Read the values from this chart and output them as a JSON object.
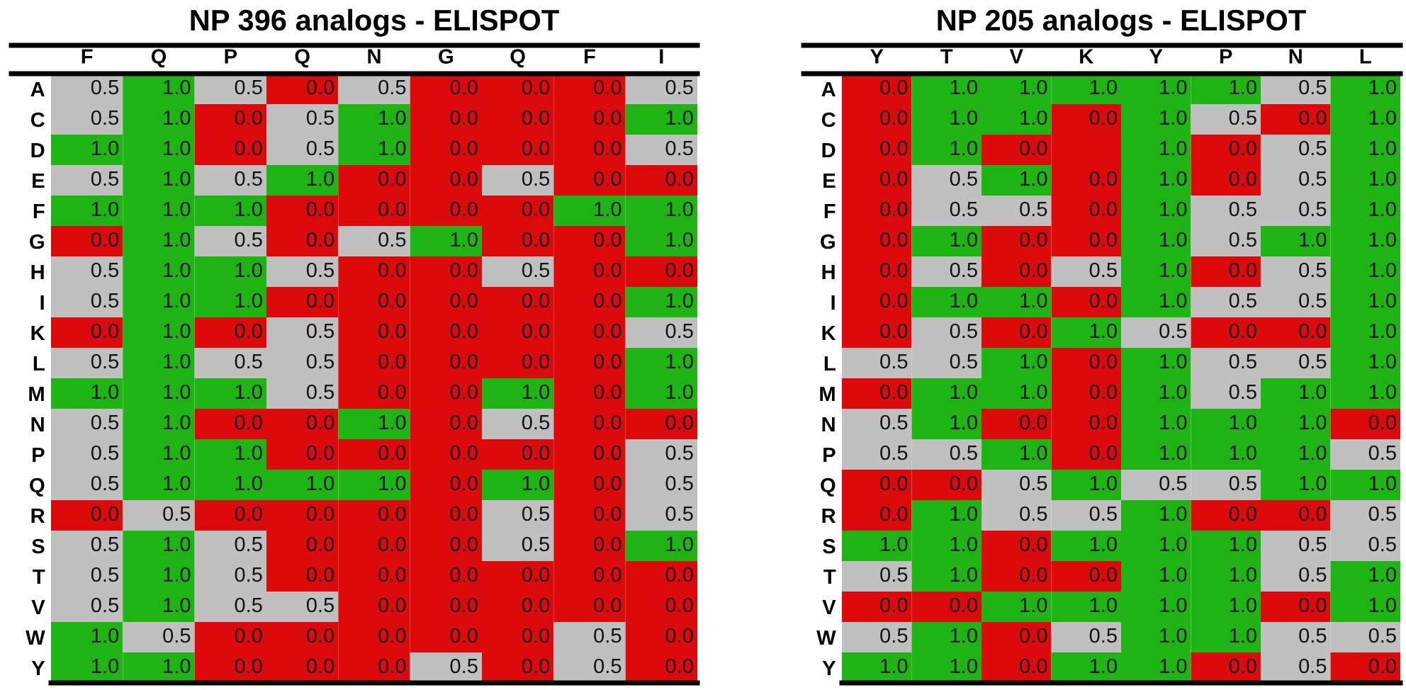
{
  "chart_data": [
    {
      "type": "heatmap",
      "title": "NP 396 analogs - ELISPOT",
      "colors": [
        "#dc0a0a",
        "#c0c0c0",
        "#1eb414"
      ],
      "categories": [
        "F",
        "Q",
        "P",
        "Q",
        "N",
        "G",
        "Q",
        "F",
        "I"
      ],
      "y_categories": [
        "A",
        "C",
        "D",
        "E",
        "F",
        "G",
        "H",
        "I",
        "K",
        "L",
        "M",
        "N",
        "P",
        "Q",
        "R",
        "S",
        "T",
        "V",
        "W",
        "Y"
      ],
      "cells": [
        [
          0.5,
          1.0,
          0.5,
          0.0,
          0.5,
          0.0,
          0.0,
          0.0,
          0.5
        ],
        [
          0.5,
          1.0,
          0.0,
          0.5,
          1.0,
          0.0,
          0.0,
          0.0,
          1.0
        ],
        [
          1.0,
          1.0,
          0.0,
          0.5,
          1.0,
          0.0,
          0.0,
          0.0,
          0.5
        ],
        [
          0.5,
          1.0,
          0.5,
          1.0,
          0.0,
          0.0,
          0.5,
          0.0,
          0.0
        ],
        [
          1.0,
          1.0,
          1.0,
          0.0,
          0.0,
          0.0,
          0.0,
          1.0,
          1.0
        ],
        [
          0.0,
          1.0,
          0.5,
          0.0,
          0.5,
          1.0,
          0.0,
          0.0,
          1.0
        ],
        [
          0.5,
          1.0,
          1.0,
          0.5,
          0.0,
          0.0,
          0.5,
          0.0,
          0.0
        ],
        [
          0.5,
          1.0,
          1.0,
          0.0,
          0.0,
          0.0,
          0.0,
          0.0,
          1.0
        ],
        [
          0.0,
          1.0,
          0.0,
          0.5,
          0.0,
          0.0,
          0.0,
          0.0,
          0.5
        ],
        [
          0.5,
          1.0,
          0.5,
          0.5,
          0.0,
          0.0,
          0.0,
          0.0,
          1.0
        ],
        [
          1.0,
          1.0,
          1.0,
          0.5,
          0.0,
          0.0,
          1.0,
          0.0,
          1.0
        ],
        [
          0.5,
          1.0,
          0.0,
          0.0,
          1.0,
          0.0,
          0.5,
          0.0,
          0.0
        ],
        [
          0.5,
          1.0,
          1.0,
          0.0,
          0.0,
          0.0,
          0.0,
          0.0,
          0.5
        ],
        [
          0.5,
          1.0,
          1.0,
          1.0,
          1.0,
          0.0,
          1.0,
          0.0,
          0.5
        ],
        [
          0.0,
          0.5,
          0.0,
          0.0,
          0.0,
          0.0,
          0.5,
          0.0,
          0.5
        ],
        [
          0.5,
          1.0,
          0.5,
          0.0,
          0.0,
          0.0,
          0.5,
          0.0,
          1.0
        ],
        [
          0.5,
          1.0,
          0.5,
          0.0,
          0.0,
          0.0,
          0.0,
          0.0,
          0.0
        ],
        [
          0.5,
          1.0,
          0.5,
          0.5,
          0.0,
          0.0,
          0.0,
          0.0,
          0.0
        ],
        [
          1.0,
          0.5,
          0.0,
          0.0,
          0.0,
          0.0,
          0.0,
          0.5,
          0.0
        ],
        [
          1.0,
          1.0,
          0.0,
          0.0,
          0.0,
          0.5,
          0.0,
          0.5,
          0.0
        ]
      ],
      "cell_labels": [
        [
          "0.5",
          "1.0",
          "0.5",
          "0.0",
          "0.5",
          "0.0",
          "0.0",
          "0.0",
          "0.5"
        ],
        [
          "0.5",
          "1.0",
          "0.0",
          "0.5",
          "1.0",
          "0.0",
          "0.0",
          "0.0",
          "1.0"
        ],
        [
          "1.0",
          "1.0",
          "0.0",
          "0.5",
          "1.0",
          "0.0",
          "0.0",
          "0.0",
          "0.5"
        ],
        [
          "0.5",
          "1.0",
          "0.5",
          "1.0",
          "0.0",
          "0.0",
          "0.5",
          "0.0",
          "0.0"
        ],
        [
          "1.0",
          "1.0",
          "1.0",
          "0.0",
          "0.0",
          "0.0",
          "0.0",
          "1.0",
          "1.0"
        ],
        [
          "0.0",
          "1.0",
          "0.5",
          "0.0",
          "0.5",
          "1.0",
          "0.0",
          "0.0",
          "1.0"
        ],
        [
          "0.5",
          "1.0",
          "1.0",
          "0.5",
          "0.0",
          "0.0",
          "0.5",
          "0.0",
          "0.0"
        ],
        [
          "0.5",
          "1.0",
          "1.0",
          "0.0",
          "0.0",
          "0.0",
          "0.0",
          "0.0",
          "1.0"
        ],
        [
          "0.0",
          "1.0",
          "0.0",
          "0.5",
          "0.0",
          "0.0",
          "0.0",
          "0.0",
          "0.5"
        ],
        [
          "0.5",
          "1.0",
          "0.5",
          "0.5",
          "0.0",
          "0.0",
          "0.0",
          "0.0",
          "1.0"
        ],
        [
          "1.0",
          "1.0",
          "1.0",
          "0.5",
          "0.0",
          "0.0",
          "1.0",
          "0.0",
          "1.0"
        ],
        [
          "0.5",
          "1.0",
          "0.0",
          "0.0",
          "1.0",
          "0.0",
          "0.5",
          "0.0",
          "0.0"
        ],
        [
          "0.5",
          "1.0",
          "1.0",
          "0.0",
          "0.0",
          "0.0",
          "0.0",
          "0.0",
          "0.5"
        ],
        [
          "0.5",
          "1.0",
          "1.0",
          "1.0",
          "1.0",
          "0.0",
          "1.0",
          "0.0",
          "0.5"
        ],
        [
          "0.0",
          "0.5",
          "0.0",
          "0.0",
          "0.0",
          "0.0",
          "0.5",
          "0.0",
          "0.5"
        ],
        [
          "0.5",
          "1.0",
          "0.5",
          "0.0",
          "0.0",
          "0.0",
          "0.5",
          "0.0",
          "1.0"
        ],
        [
          "0.5",
          "1.0",
          "0.5",
          "0.0",
          "0.0",
          "0.0",
          "0.0",
          "0.0",
          "0.0"
        ],
        [
          "0.5",
          "1.0",
          "0.5",
          "0.5",
          "0.0",
          "0.0",
          "0.0",
          "0.0",
          "0.0"
        ],
        [
          "1.0",
          "0.5",
          "0.0",
          "0.0",
          "0.0",
          "0.0",
          "0.0",
          "0.5",
          "0.0"
        ],
        [
          "1.0",
          "1.0",
          "0.0",
          "0.0",
          "0.0",
          "0.5",
          "0.0",
          "0.5",
          "0.0"
        ]
      ]
    },
    {
      "type": "heatmap",
      "title": "NP 205 analogs - ELISPOT",
      "colors": [
        "#dc0a0a",
        "#c0c0c0",
        "#1eb414"
      ],
      "categories": [
        "Y",
        "T",
        "V",
        "K",
        "Y",
        "P",
        "N",
        "L"
      ],
      "y_categories": [
        "A",
        "C",
        "D",
        "E",
        "F",
        "G",
        "H",
        "I",
        "K",
        "L",
        "M",
        "N",
        "P",
        "Q",
        "R",
        "S",
        "T",
        "V",
        "W",
        "Y"
      ],
      "cells": [
        [
          0.0,
          1.0,
          1.0,
          1.0,
          1.0,
          1.0,
          0.5,
          1.0
        ],
        [
          0.0,
          1.0,
          1.0,
          0.0,
          1.0,
          0.5,
          0.0,
          1.0
        ],
        [
          0.0,
          1.0,
          0.0,
          null,
          1.0,
          0.0,
          0.5,
          1.0
        ],
        [
          0.0,
          0.5,
          1.0,
          0.0,
          1.0,
          0.0,
          0.5,
          1.0
        ],
        [
          0.0,
          0.5,
          0.5,
          0.0,
          1.0,
          0.5,
          0.5,
          1.0
        ],
        [
          0.0,
          1.0,
          0.0,
          0.0,
          1.0,
          0.5,
          1.0,
          1.0
        ],
        [
          0.0,
          0.5,
          0.0,
          0.5,
          1.0,
          0.0,
          0.5,
          1.0
        ],
        [
          0.0,
          1.0,
          1.0,
          0.0,
          1.0,
          0.5,
          0.5,
          1.0
        ],
        [
          0.0,
          0.5,
          0.0,
          1.0,
          0.5,
          0.0,
          0.0,
          1.0
        ],
        [
          0.5,
          0.5,
          1.0,
          0.0,
          1.0,
          0.5,
          0.5,
          1.0
        ],
        [
          0.0,
          1.0,
          1.0,
          0.0,
          1.0,
          0.5,
          1.0,
          1.0
        ],
        [
          0.5,
          1.0,
          0.0,
          0.0,
          1.0,
          1.0,
          1.0,
          0.0
        ],
        [
          0.5,
          0.5,
          1.0,
          0.0,
          1.0,
          1.0,
          1.0,
          0.5
        ],
        [
          0.0,
          0.0,
          0.5,
          1.0,
          0.5,
          0.5,
          1.0,
          1.0
        ],
        [
          0.0,
          1.0,
          0.5,
          0.5,
          1.0,
          0.0,
          0.0,
          0.5
        ],
        [
          1.0,
          1.0,
          0.0,
          1.0,
          1.0,
          1.0,
          0.5,
          0.5
        ],
        [
          0.5,
          1.0,
          0.0,
          0.0,
          1.0,
          1.0,
          0.5,
          1.0
        ],
        [
          0.0,
          0.0,
          1.0,
          1.0,
          1.0,
          1.0,
          0.0,
          1.0
        ],
        [
          0.5,
          1.0,
          0.0,
          0.5,
          1.0,
          1.0,
          0.5,
          0.5
        ],
        [
          1.0,
          1.0,
          0.0,
          1.0,
          1.0,
          0.0,
          0.5,
          0.0
        ]
      ],
      "cell_labels": [
        [
          "0.0",
          "1.0",
          "1.0",
          "1.0",
          "1.0",
          "1.0",
          "0.5",
          "1.0"
        ],
        [
          "0.0",
          "1.0",
          "1.0",
          "0.0",
          "1.0",
          "0.5",
          "0.0",
          "1.0"
        ],
        [
          "0.0",
          "1.0",
          "0.0",
          null,
          "1.0",
          "0.0",
          "0.5",
          "1.0"
        ],
        [
          "0.0",
          "0.5",
          "1.0",
          "0.0",
          "1.0",
          "0.0",
          "0.5",
          "1.0"
        ],
        [
          "0.0",
          "0.5",
          "0.5",
          "0.0",
          "1.0",
          "0.5",
          "0.5",
          "1.0"
        ],
        [
          "0.0",
          "1.0",
          "0.0",
          "0.0",
          "1.0",
          "0.5",
          "1.0",
          "1.0"
        ],
        [
          "0.0",
          "0.5",
          "0.0",
          "0.5",
          "1.0",
          "0.0",
          "0.5",
          "1.0"
        ],
        [
          "0.0",
          "1.0",
          "1.0",
          "0.0",
          "1.0",
          "0.5",
          "0.5",
          "1.0"
        ],
        [
          "0.0",
          "0.5",
          "0.0",
          "1.0",
          "0.5",
          "0.0",
          "0.0",
          "1.0"
        ],
        [
          "0.5",
          "0.5",
          "1.0",
          "0.0",
          "1.0",
          "0.5",
          "0.5",
          "1.0"
        ],
        [
          "0.0",
          "1.0",
          "1.0",
          "0.0",
          "1.0",
          "0.5",
          "1.0",
          "1.0"
        ],
        [
          "0.5",
          "1.0",
          "0.0",
          "0.0",
          "1.0",
          "1.0",
          "1.0",
          "0.0"
        ],
        [
          "0.5",
          "0.5",
          "1.0",
          "0.0",
          "1.0",
          "1.0",
          "1.0",
          "0.5"
        ],
        [
          "0.0",
          "0.0",
          "0.5",
          "1.0",
          "0.5",
          "0.5",
          "1.0",
          "1.0"
        ],
        [
          "0.0",
          "1.0",
          "0.5",
          "0.5",
          "1.0",
          "0.0",
          "0.0",
          "0.5"
        ],
        [
          "1.0",
          "1.0",
          "0.0",
          "1.0",
          "1.0",
          "1.0",
          "0.5",
          "0.5"
        ],
        [
          "0.5",
          "1.0",
          "0.0",
          "0.0",
          "1.0",
          "1.0",
          "0.5",
          "1.0"
        ],
        [
          "0.0",
          "0.0",
          "1.0",
          "1.0",
          "1.0",
          "1.0",
          "0.0",
          "1.0"
        ],
        [
          "0.5",
          "1.0",
          "0.0",
          "0.5",
          "1.0",
          "1.0",
          "0.5",
          "0.5"
        ],
        [
          "1.0",
          "1.0",
          "0.0",
          "1.0",
          "1.0",
          "0.0",
          "0.5",
          "0.0"
        ]
      ]
    }
  ]
}
